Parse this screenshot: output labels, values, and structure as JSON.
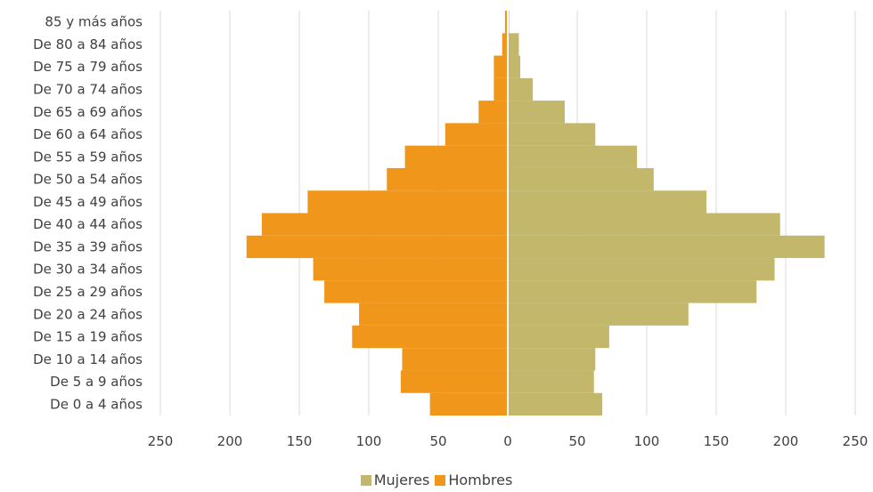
{
  "chart_data": {
    "type": "bar",
    "orientation": "horizontal",
    "subtype": "population-pyramid",
    "title": "",
    "xlabel": "",
    "ylabel": "",
    "xlim": [
      -250,
      250
    ],
    "x_ticks": [
      -250,
      -200,
      -150,
      -100,
      -50,
      0,
      50,
      100,
      150,
      200,
      250
    ],
    "x_tick_labels": [
      "250",
      "200",
      "150",
      "100",
      "50",
      "0",
      "50",
      "100",
      "150",
      "200",
      "250"
    ],
    "grid": true,
    "legend_position": "bottom",
    "categories": [
      "85 y más años",
      "De 80 a 84 años",
      "De 75 a 79 años",
      "De 70 a 74 años",
      "De 65 a 69 años",
      "De 60 a 64 años",
      "De 55 a 59 años",
      "De 50 a 54 años",
      "De 45 a 49 años",
      "De 40 a 44 años",
      "De 35 a 39 años",
      "De 30 a 34 años",
      "De 25 a 29 años",
      "De 20 a 24 años",
      "De 15 a 19 años",
      "De 10 a 14 años",
      "De 5 a 9 años",
      "De 0 a 4 años"
    ],
    "series": [
      {
        "name": "Mujeres",
        "color": "#c3b76c",
        "values": [
          1,
          8,
          9,
          18,
          41,
          63,
          93,
          105,
          143,
          196,
          228,
          192,
          179,
          130,
          73,
          63,
          62,
          68
        ]
      },
      {
        "name": "Hombres",
        "color": "#f0961a",
        "values": [
          2,
          4,
          10,
          10,
          21,
          45,
          74,
          87,
          144,
          177,
          188,
          140,
          132,
          107,
          112,
          76,
          77,
          56
        ]
      }
    ]
  }
}
